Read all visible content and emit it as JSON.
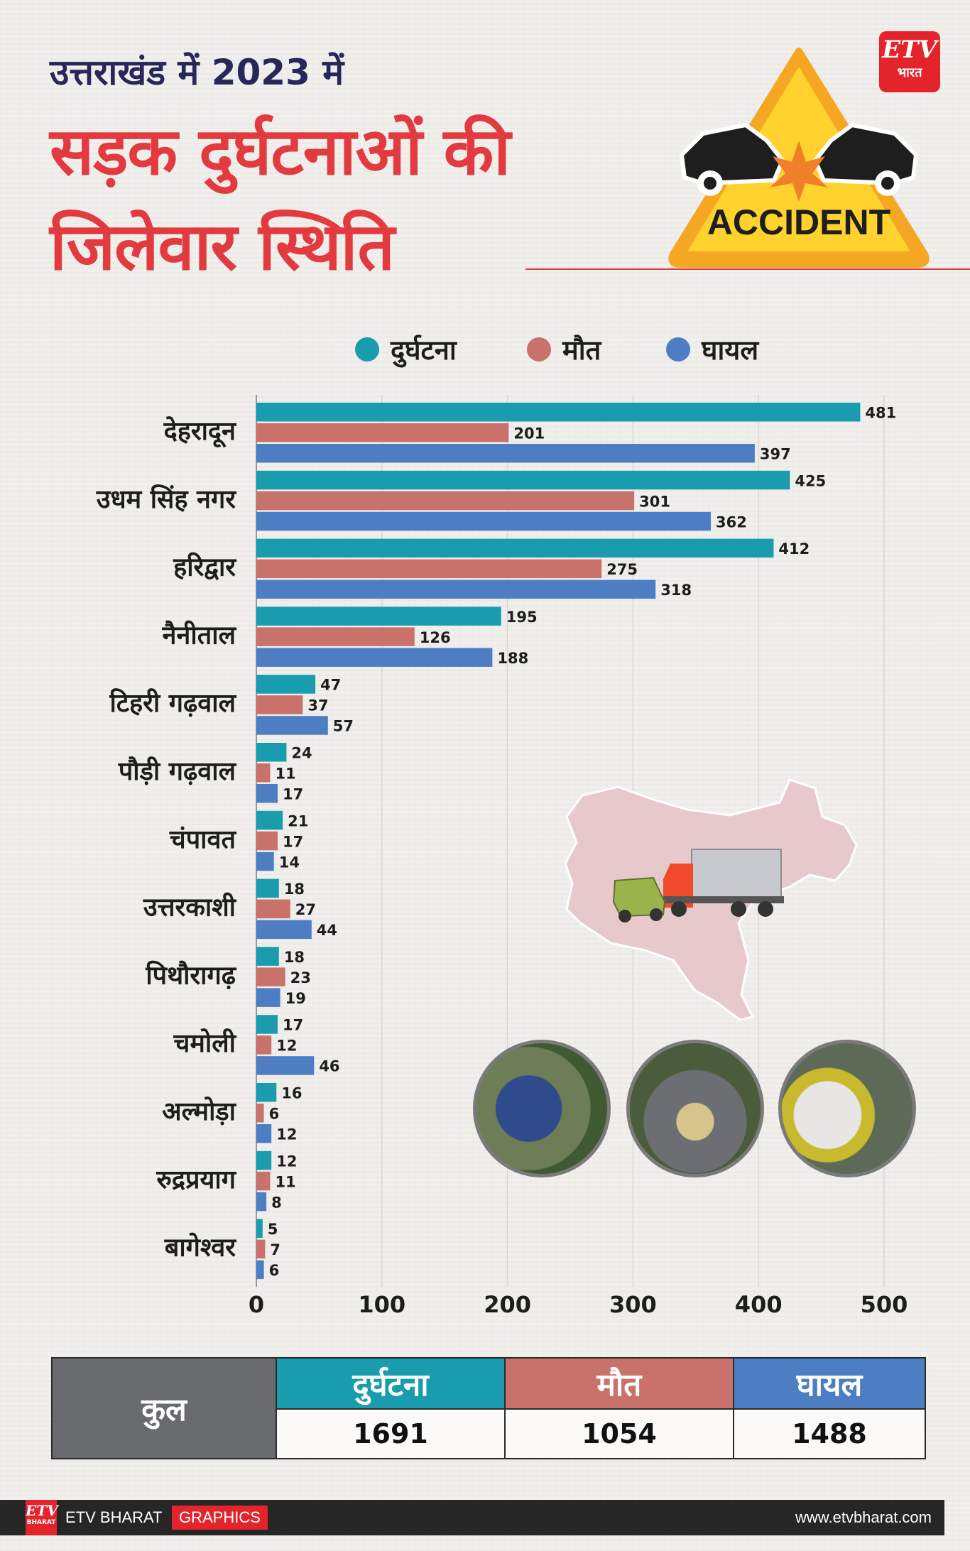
{
  "header": {
    "title_line1": "उत्तराखंड में 2023 में",
    "title_line2": "सड़क दुर्घटनाओं की",
    "title_line3": "जिलेवार स्थिति"
  },
  "logo": {
    "mark": "ETV",
    "sub": "भारत"
  },
  "accident_sign": {
    "label": "ACCIDENT"
  },
  "colors": {
    "accidents": "#1a9caf",
    "deaths": "#c9726c",
    "injured": "#4d7ec4",
    "title_red": "#e23a3e",
    "title_navy": "#27275c"
  },
  "legend": [
    {
      "label": "दुर्घटना"
    },
    {
      "label": "मौत"
    },
    {
      "label": "घायल"
    }
  ],
  "chart_data": {
    "type": "bar",
    "orientation": "horizontal",
    "title": "उत्तराखंड में 2023 में सड़क दुर्घटनाओं की जिलेवार स्थिति",
    "categories": [
      "देहरादून",
      "उधम सिंह नगर",
      "हरिद्वार",
      "नैनीताल",
      "टिहरी गढ़वाल",
      "पौड़ी गढ़वाल",
      "चंपावत",
      "उत्तरकाशी",
      "पिथौरागढ़",
      "चमोली",
      "अल्मोड़ा",
      "रुद्रप्रयाग",
      "बागेश्वर"
    ],
    "series": [
      {
        "name": "दुर्घटना",
        "values": [
          481,
          425,
          412,
          195,
          47,
          24,
          21,
          18,
          18,
          17,
          16,
          12,
          5
        ]
      },
      {
        "name": "मौत",
        "values": [
          201,
          301,
          275,
          126,
          37,
          11,
          17,
          27,
          23,
          12,
          6,
          11,
          7
        ]
      },
      {
        "name": "घायल",
        "values": [
          397,
          362,
          318,
          188,
          57,
          17,
          14,
          44,
          19,
          46,
          12,
          8,
          6
        ]
      }
    ],
    "xlim": [
      0,
      520
    ],
    "xticks": [
      0,
      100,
      200,
      300,
      400,
      500
    ],
    "grid": true,
    "legend_position": "top"
  },
  "totals": {
    "label": "कुल",
    "headers": [
      "दुर्घटना",
      "मौत",
      "घायल"
    ],
    "values": [
      "1691",
      "1054",
      "1488"
    ]
  },
  "footer": {
    "logo_mark": "ETV",
    "logo_sub": "BHARAT",
    "brand": "ETV BHARAT",
    "tag": "GRAPHICS",
    "site": "www.etvbharat.com"
  }
}
